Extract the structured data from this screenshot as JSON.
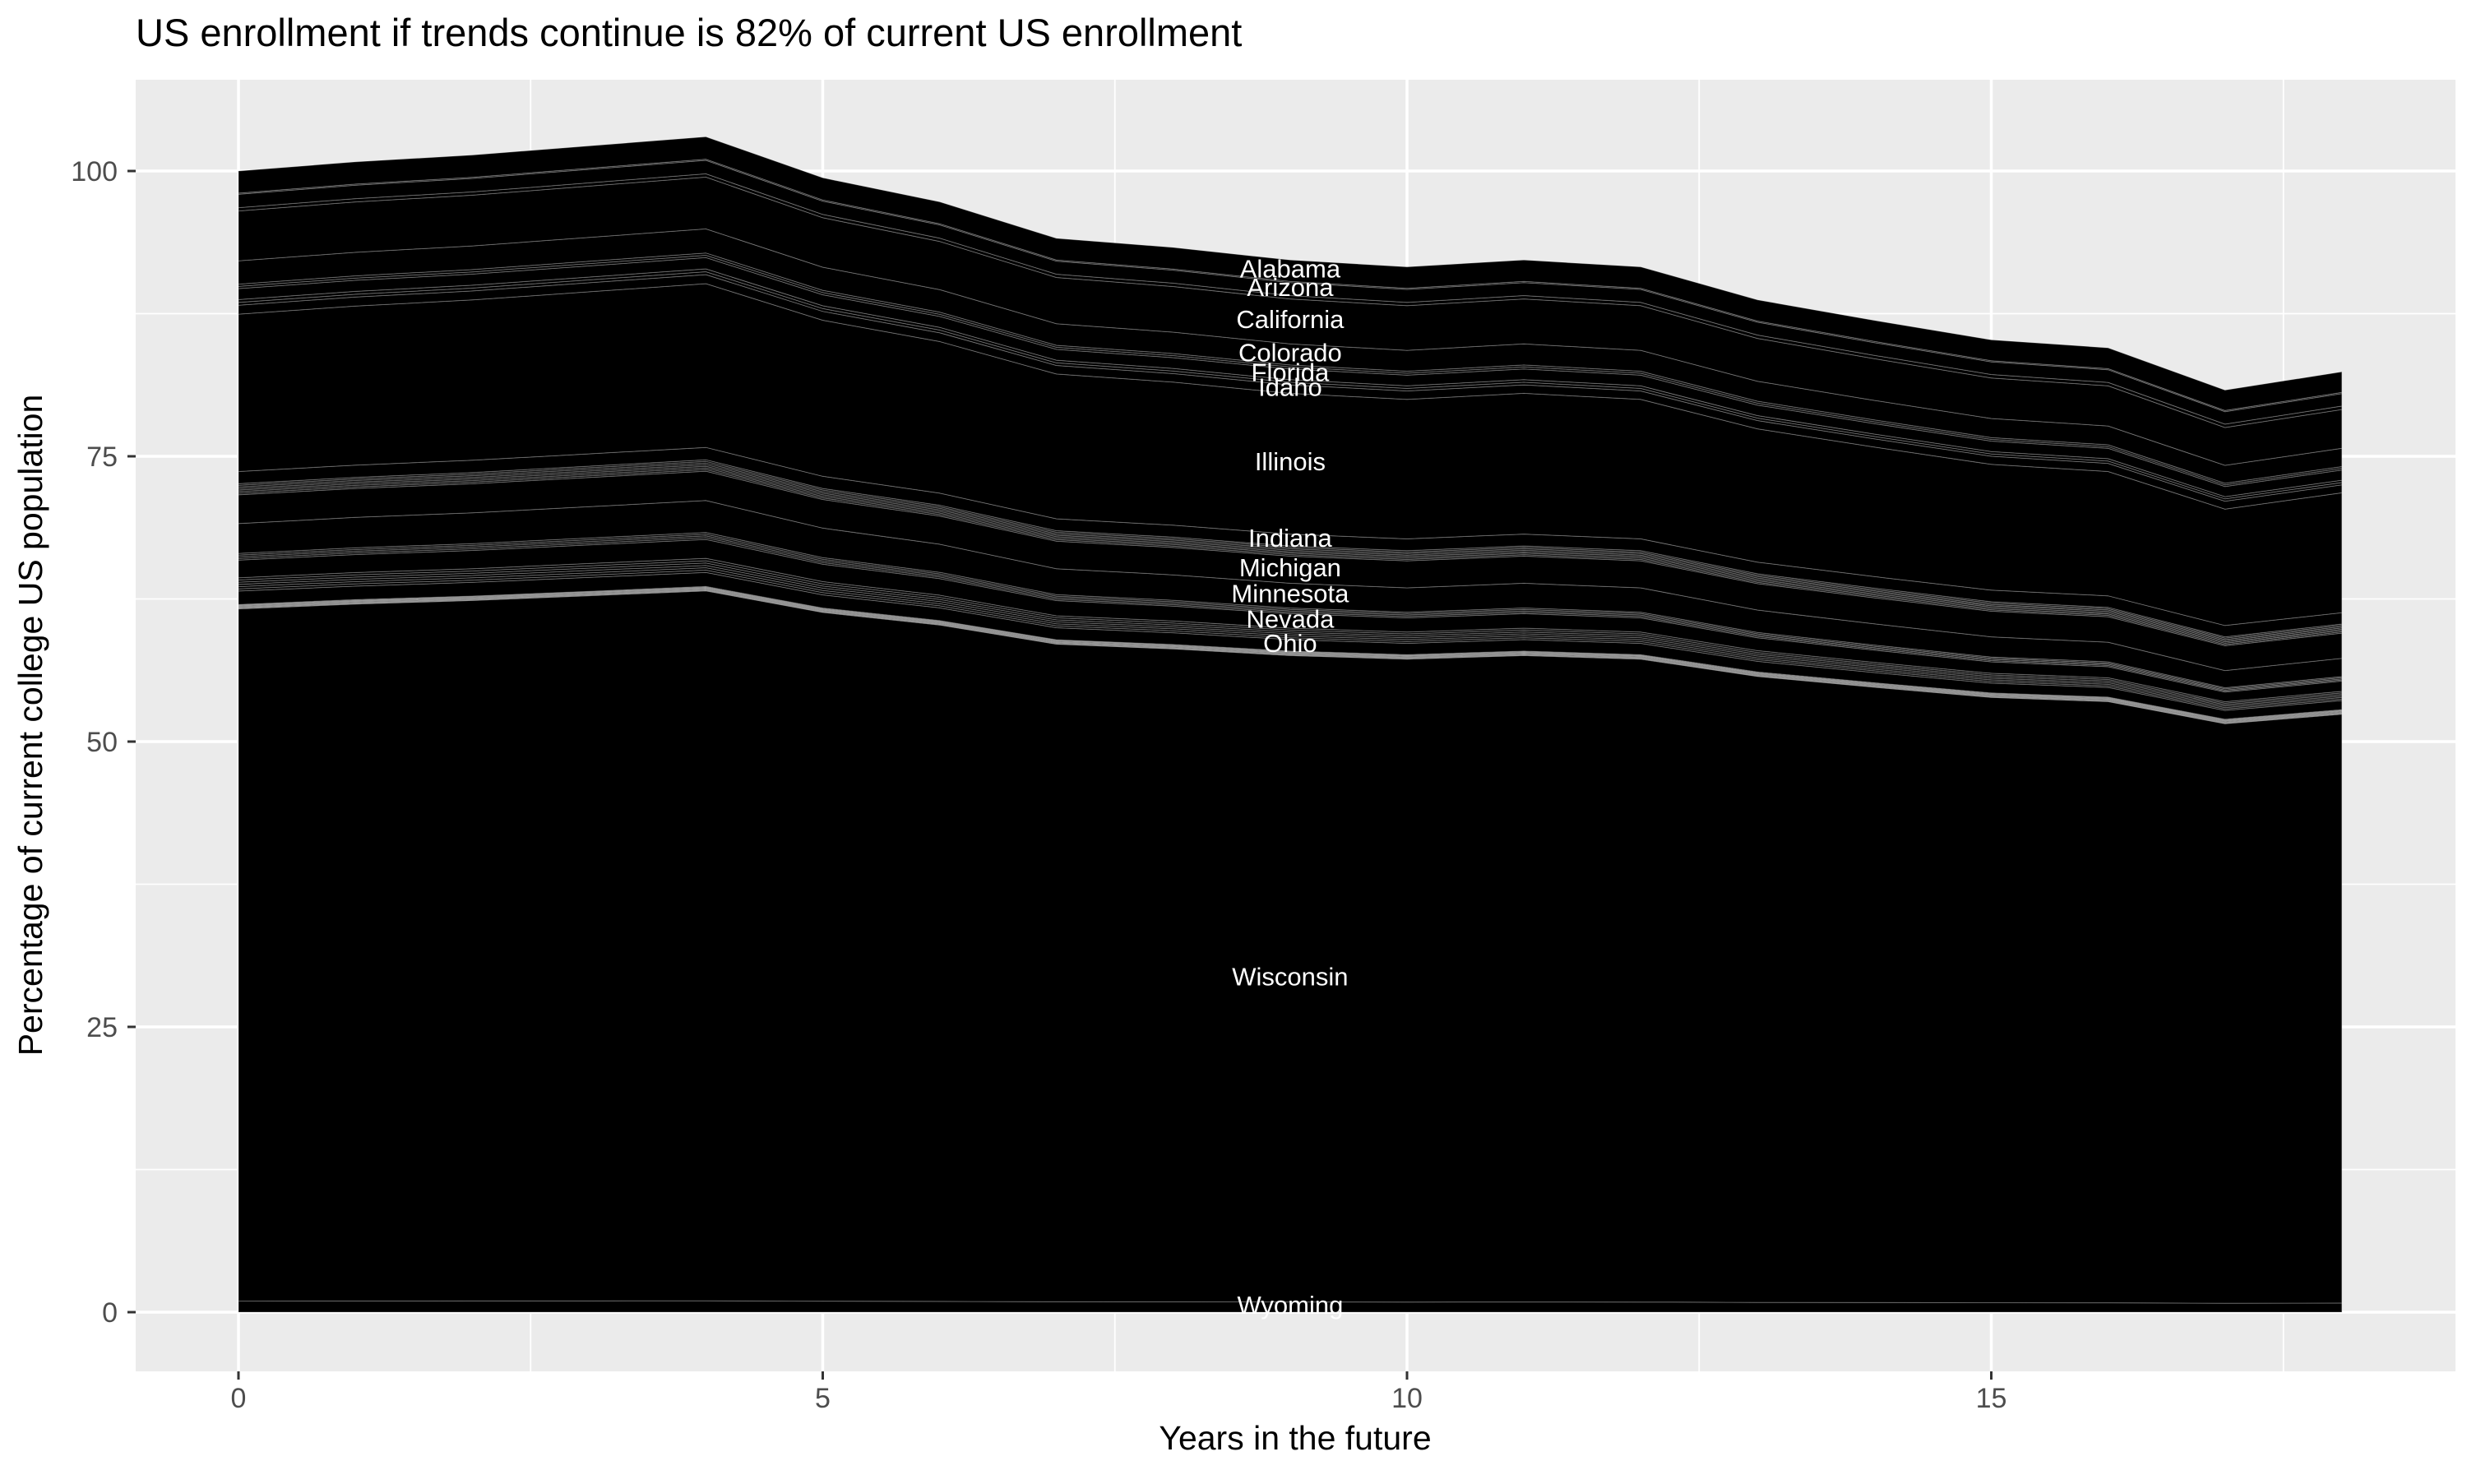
{
  "chart_data": {
    "type": "area",
    "title": "US enrollment if trends continue is 82% of current US enrollment",
    "xlabel": "Years in the future",
    "ylabel": "Percentage of current college US population",
    "x": [
      0,
      1,
      2,
      3,
      4,
      5,
      6,
      7,
      8,
      9,
      10,
      11,
      12,
      13,
      14,
      15,
      16,
      17,
      18
    ],
    "total_top": [
      100.0,
      100.8,
      101.4,
      102.2,
      103.0,
      99.4,
      97.3,
      94.1,
      93.3,
      92.2,
      91.6,
      92.2,
      91.6,
      88.7,
      86.9,
      85.2,
      84.5,
      80.8,
      82.4
    ],
    "end_value_pct": 82,
    "xlim": [
      -0.88,
      18.97
    ],
    "ylim": [
      -5.2,
      108.0
    ],
    "x_ticks": {
      "major": [
        0,
        5,
        10,
        15
      ],
      "minor": [
        2.5,
        7.5,
        12.5,
        17.5
      ],
      "labels": [
        "0",
        "5",
        "10",
        "15"
      ]
    },
    "y_ticks": {
      "major": [
        0,
        25,
        50,
        75,
        100
      ],
      "minor": [
        12.5,
        37.5,
        62.5,
        87.5
      ],
      "labels": [
        "0",
        "25",
        "50",
        "75",
        "100"
      ]
    },
    "grid": true,
    "legend": "none",
    "label_x": 9,
    "stacking": "bottom-to-top, reverse alphabetical of 50 states; labels shown only for large bands",
    "bands": [
      {
        "label": "Wyoming",
        "hues": [
          50
        ],
        "v_start": 0.97,
        "v_end": 0.8
      },
      {
        "label": "Wisconsin",
        "hues": [
          49
        ],
        "v_start": 60.66,
        "v_end": 51.6
      },
      {
        "label": null,
        "hues": [
          48,
          47,
          46,
          45,
          44,
          43,
          42,
          41,
          40,
          39,
          38,
          37,
          36
        ],
        "v_start": 0.39,
        "v_end": 0.4
      },
      {
        "label": "Ohio",
        "hues": [
          35
        ],
        "v_start": 1.17,
        "v_end": 0.8
      },
      {
        "label": null,
        "hues": [
          34,
          33,
          32,
          31,
          30,
          29
        ],
        "v_start": 1.17,
        "v_end": 0.8
      },
      {
        "label": "Nevada",
        "hues": [
          28
        ],
        "v_start": 1.55,
        "v_end": 0.9
      },
      {
        "label": null,
        "hues": [
          27,
          26,
          25,
          24
        ],
        "v_start": 0.58,
        "v_end": 0.4
      },
      {
        "label": "Minnesota",
        "hues": [
          23
        ],
        "v_start": 2.62,
        "v_end": 1.6
      },
      {
        "label": "Michigan",
        "hues": [
          22
        ],
        "v_start": 2.52,
        "v_end": 2.2
      },
      {
        "label": null,
        "hues": [
          21,
          20,
          19,
          18,
          17,
          16,
          15
        ],
        "v_start": 0.97,
        "v_end": 0.8
      },
      {
        "label": "Indiana",
        "hues": [
          14
        ],
        "v_start": 1.07,
        "v_end": 1.0
      },
      {
        "label": "Illinois",
        "hues": [
          13
        ],
        "v_start": 13.79,
        "v_end": 10.5
      },
      {
        "label": "Idaho",
        "hues": [
          12
        ],
        "v_start": 0.78,
        "v_end": 0.7
      },
      {
        "label": null,
        "hues": [
          11,
          10
        ],
        "v_start": 0.49,
        "v_end": 0.4
      },
      {
        "label": "Florida",
        "hues": [
          9
        ],
        "v_start": 0.97,
        "v_end": 0.9
      },
      {
        "label": null,
        "hues": [
          8,
          7
        ],
        "v_start": 0.39,
        "v_end": 0.3
      },
      {
        "label": "Colorado",
        "hues": [
          6
        ],
        "v_start": 2.04,
        "v_end": 1.6
      },
      {
        "label": "California",
        "hues": [
          5
        ],
        "v_start": 4.37,
        "v_end": 3.4
      },
      {
        "label": null,
        "hues": [
          4
        ],
        "v_start": 0.29,
        "v_end": 0.3
      },
      {
        "label": "Arizona",
        "hues": [
          3
        ],
        "v_start": 1.17,
        "v_end": 1.1
      },
      {
        "label": null,
        "hues": [
          2
        ],
        "v_start": 0.1,
        "v_end": 0.1
      },
      {
        "label": "Alabama",
        "hues": [
          1
        ],
        "v_start": 1.94,
        "v_end": 1.8
      }
    ],
    "palette": {
      "type": "ggplot-hue",
      "n": 50,
      "chroma": 100,
      "luminance": 65,
      "hue_start": 15
    },
    "reference_colors": {
      "wisconsin_pink": "#FF6C90",
      "illinois_green": "#85AD00",
      "california_orange": "#E08B00",
      "alabama_salmon": "#F8766D",
      "ohio_periwinkle": "#9590FF",
      "nevada_blue": "#00B4EF",
      "michigan_teal": "#00C08D"
    }
  },
  "colors": {
    "panel_bg": "#EBEBEB",
    "gridline": "#FFFFFF",
    "tick_mark": "#333333",
    "tick_label": "#4D4D4D",
    "title_text": "#000000",
    "axis_title_text": "#000000",
    "state_label_text": "#FFFFFF",
    "page_bg": "#FFFFFF"
  }
}
